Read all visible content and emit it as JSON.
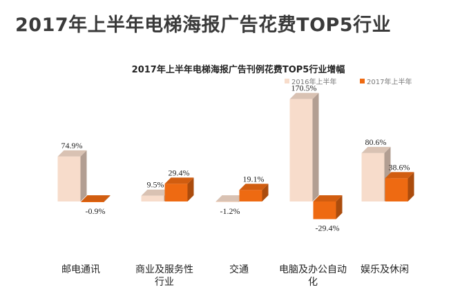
{
  "page": {
    "headline": "2017年上半年电梯海报广告花费TOP5行业"
  },
  "chart_data": {
    "type": "bar",
    "title": "2017年上半年电梯海报广告刊例花费TOP5行业增幅",
    "categories": [
      "邮电通讯",
      "商业及服务性行业",
      "交通",
      "电脑及办公自动化",
      "娱乐及休闲"
    ],
    "series": [
      {
        "name": "2016年上半年",
        "values": [
          74.9,
          9.5,
          -1.2,
          170.5,
          80.6
        ],
        "labels": [
          "74.9%",
          "9.5%",
          "-1.2%",
          "170.5%",
          "80.6%"
        ],
        "color": "#f7dccb"
      },
      {
        "name": "2017年上半年",
        "values": [
          -0.9,
          29.4,
          19.1,
          -29.4,
          38.6
        ],
        "labels": [
          "-0.9%",
          "29.4%",
          "19.1%",
          "-29.4%",
          "38.6%"
        ],
        "color": "#ee6a12"
      }
    ],
    "legend_position": "top-right",
    "grid": false,
    "unit": "%"
  }
}
